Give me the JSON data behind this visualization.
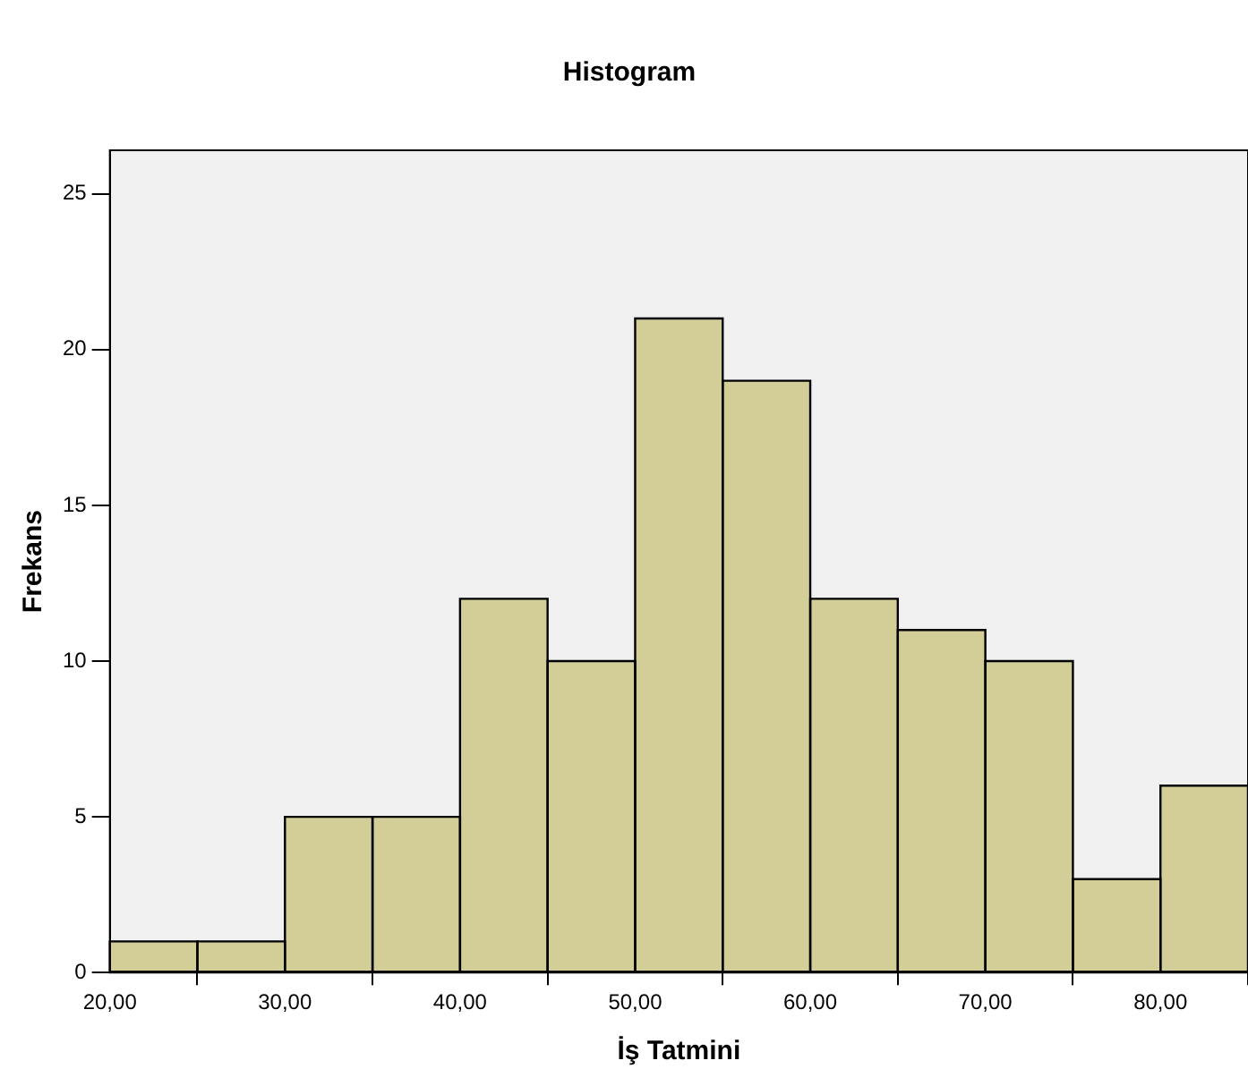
{
  "chart_data": {
    "type": "histogram",
    "title": "Histogram",
    "xlabel": "İş Tatmini",
    "ylabel": "Frekans",
    "bins": [
      20,
      25,
      30,
      35,
      40,
      45,
      50,
      55,
      60,
      65,
      70,
      75,
      80,
      85
    ],
    "values": [
      1,
      1,
      5,
      5,
      12,
      10,
      21,
      19,
      12,
      11,
      10,
      3,
      6
    ],
    "color": "#d3ce97",
    "xlim": [
      20,
      85
    ],
    "ylim": [
      0,
      26.4
    ],
    "xticks": [
      {
        "value": 20,
        "label": "20,00"
      },
      {
        "value": 30,
        "label": "30,00"
      },
      {
        "value": 40,
        "label": "40,00"
      },
      {
        "value": 50,
        "label": "50,00"
      },
      {
        "value": 60,
        "label": "60,00"
      },
      {
        "value": 70,
        "label": "70,00"
      },
      {
        "value": 80,
        "label": "80,00"
      }
    ],
    "yticks": [
      0,
      5,
      10,
      15,
      20,
      25
    ],
    "grid": false,
    "legend": false
  }
}
